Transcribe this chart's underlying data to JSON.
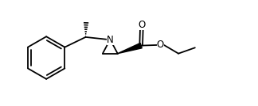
{
  "bg_color": "#ffffff",
  "line_color": "#000000",
  "lw": 1.3,
  "fig_width": 3.24,
  "fig_height": 1.34,
  "dpi": 100,
  "xlim": [
    0,
    9.5
  ],
  "ylim": [
    0,
    4.0
  ]
}
